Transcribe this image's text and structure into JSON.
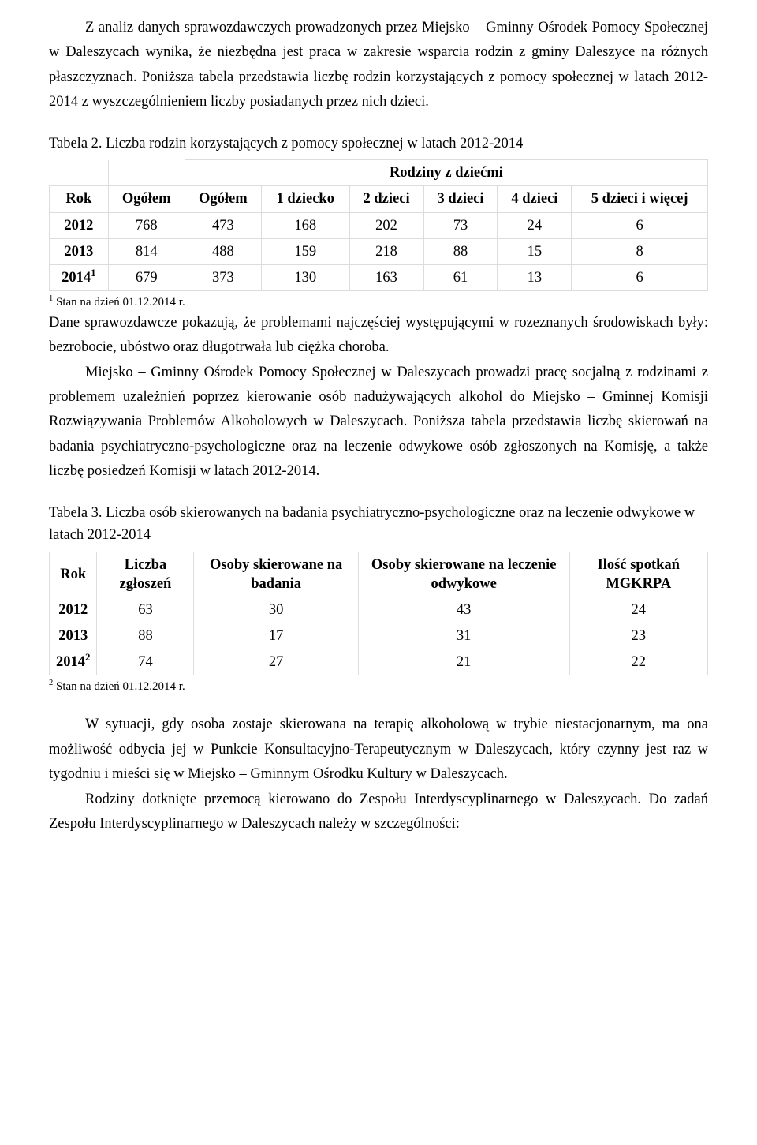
{
  "para1": "Z analiz danych sprawozdawczych prowadzonych przez Miejsko – Gminny Ośrodek Pomocy Społecznej w Daleszycach wynika, że niezbędna jest praca w zakresie wsparcia rodzin z gminy Daleszyce na różnych płaszczyznach. Poniższa tabela przedstawia liczbę rodzin korzystających z pomocy społecznej w latach 2012-2014 z wyszczególnieniem liczby posiadanych przez nich dzieci.",
  "table2": {
    "caption": "Tabela 2. Liczba rodzin korzystających z pomocy społecznej w latach 2012-2014",
    "super_header": "Rodziny z dziećmi",
    "cols": {
      "rok": "Rok",
      "ogolem": "Ogółem",
      "ogolem_dz": "Ogółem",
      "d1": "1 dziecko",
      "d2": "2 dzieci",
      "d3": "3 dzieci",
      "d4": "4 dzieci",
      "d5": "5 dzieci i więcej"
    },
    "r0": {
      "rok": "2012",
      "og": "768",
      "ogd": "473",
      "d1": "168",
      "d2": "202",
      "d3": "73",
      "d4": "24",
      "d5": "6"
    },
    "r1": {
      "rok": "2013",
      "og": "814",
      "ogd": "488",
      "d1": "159",
      "d2": "218",
      "d3": "88",
      "d4": "15",
      "d5": "8"
    },
    "r2": {
      "rok": "2014",
      "sup": "1",
      "og": "679",
      "ogd": "373",
      "d1": "130",
      "d2": "163",
      "d3": "61",
      "d4": "13",
      "d5": "6"
    },
    "footnote_sup": "1",
    "footnote": " Stan na dzień 01.12.2014 r."
  },
  "para2": "Dane sprawozdawcze pokazują, że problemami najczęściej występującymi w rozeznanych środowiskach były: bezrobocie, ubóstwo oraz długotrwała lub ciężka choroba.",
  "para3": "Miejsko – Gminny Ośrodek Pomocy Społecznej w Daleszycach prowadzi pracę socjalną z rodzinami z problemem uzależnień poprzez kierowanie osób nadużywających alkohol do Miejsko – Gminnej Komisji Rozwiązywania Problemów Alkoholowych w Daleszycach. Poniższa tabela przedstawia liczbę skierowań na badania psychiatryczno-psychologiczne oraz na leczenie odwykowe osób zgłoszonych na Komisję, a także liczbę posiedzeń Komisji w latach 2012-2014.",
  "table3": {
    "caption": "Tabela 3. Liczba osób skierowanych na badania psychiatryczno-psychologiczne oraz na leczenie odwykowe w latach 2012-2014",
    "cols": {
      "rok": "Rok",
      "zgl": "Liczba zgłoszeń",
      "bad": "Osoby skierowane na badania",
      "odw": "Osoby skierowane na leczenie odwykowe",
      "mgk": "Ilość spotkań MGKRPA"
    },
    "r0": {
      "rok": "2012",
      "zgl": "63",
      "bad": "30",
      "odw": "43",
      "mgk": "24"
    },
    "r1": {
      "rok": "2013",
      "zgl": "88",
      "bad": "17",
      "odw": "31",
      "mgk": "23"
    },
    "r2": {
      "rok": "2014",
      "sup": "2",
      "zgl": "74",
      "bad": "27",
      "odw": "21",
      "mgk": "22"
    },
    "footnote_sup": "2",
    "footnote": " Stan na dzień 01.12.2014 r."
  },
  "para4": "W sytuacji, gdy osoba zostaje skierowana na terapię alkoholową w trybie niestacjonarnym, ma ona możliwość odbycia jej w Punkcie Konsultacyjno-Terapeutycznym w Daleszycach, który czynny jest raz w tygodniu i mieści się w Miejsko – Gminnym Ośrodku Kultury w Daleszycach.",
  "para5": "Rodziny dotknięte przemocą kierowano do Zespołu Interdyscyplinarnego w Daleszycach. Do zadań Zespołu Interdyscyplinarnego w Daleszycach należy w szczególności:",
  "style": {
    "border_color": "#dcdcdc",
    "text_color": "#000000",
    "bg_color": "#ffffff",
    "base_font_pt": 18.5,
    "footnote_font_pt": 15
  }
}
